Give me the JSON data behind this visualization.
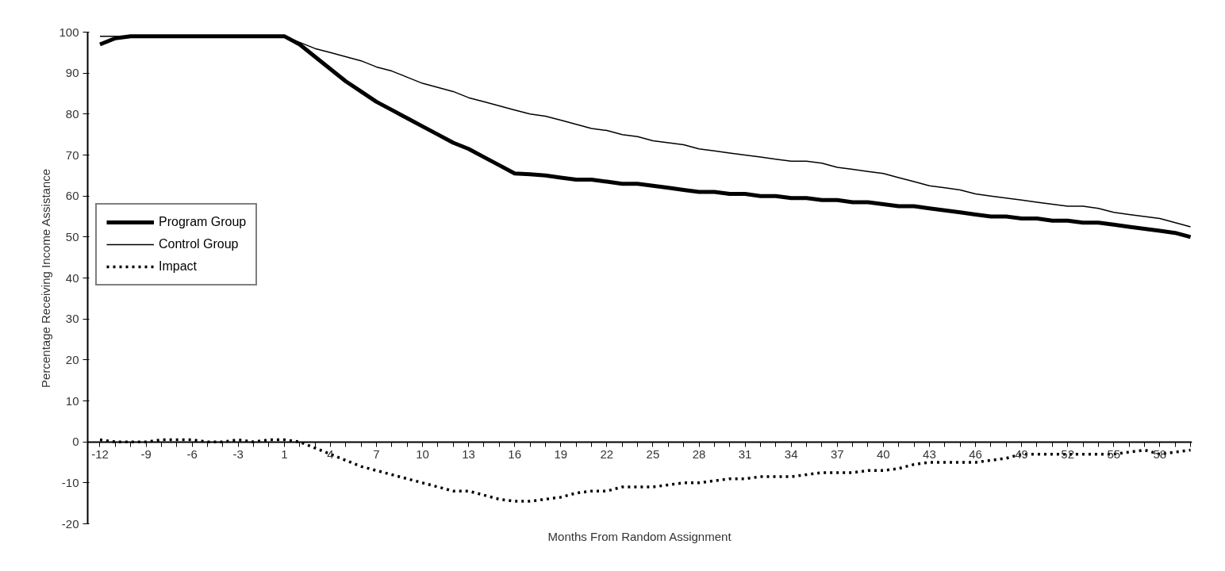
{
  "chart_data": {
    "type": "line",
    "xlabel": "Months From Random Assignment",
    "ylabel": "Percentage Receiving Income Assistance",
    "categories": [
      "-12",
      null,
      null,
      "-9",
      null,
      null,
      "-6",
      null,
      null,
      "-3",
      null,
      null,
      "1",
      null,
      null,
      "4",
      null,
      null,
      "7",
      null,
      null,
      "10",
      null,
      null,
      "13",
      null,
      null,
      "16",
      null,
      null,
      "19",
      null,
      null,
      "22",
      null,
      null,
      "25",
      null,
      null,
      "28",
      null,
      null,
      "31",
      null,
      null,
      "34",
      null,
      null,
      "37",
      null,
      null,
      "40",
      null,
      null,
      "43",
      null,
      null,
      "46",
      null,
      null,
      "49",
      null,
      null,
      "52",
      null,
      null,
      "55",
      null,
      null,
      "58",
      null,
      null
    ],
    "series": [
      {
        "name": "Program Group",
        "color": "#000000",
        "line_style": "solid",
        "values": [
          97,
          98.5,
          99,
          99,
          99,
          99,
          99,
          99,
          99,
          99,
          99,
          99,
          99,
          97,
          94,
          91,
          88,
          85.5,
          83,
          81,
          79,
          77,
          75,
          73,
          71.5,
          69.5,
          67.5,
          65.5,
          65.3,
          65,
          64.5,
          64,
          64,
          63.5,
          63,
          63,
          62.5,
          62,
          61.5,
          61,
          61,
          60.5,
          60.5,
          60,
          60,
          59.5,
          59.5,
          59,
          59,
          58.5,
          58.5,
          58,
          57.5,
          57.5,
          57,
          56.5,
          56,
          55.5,
          55,
          55,
          54.5,
          54.5,
          54,
          54,
          53.5,
          53.5,
          53,
          52.5,
          52,
          51.5,
          51,
          50
        ]
      },
      {
        "name": "Control Group",
        "color": "#000000",
        "line_style": "solid",
        "values": [
          99,
          99,
          99,
          99,
          99,
          99,
          99,
          99,
          99,
          99,
          99,
          99,
          99,
          97.5,
          96,
          95,
          94,
          93,
          91.5,
          90.5,
          89,
          87.5,
          86.5,
          85.5,
          84,
          83,
          82,
          81,
          80,
          79.5,
          78.5,
          77.5,
          76.5,
          76,
          75,
          74.5,
          73.5,
          73,
          72.5,
          71.5,
          71,
          70.5,
          70,
          69.5,
          69,
          68.5,
          68.5,
          68,
          67,
          66.5,
          66,
          65.5,
          64.5,
          63.5,
          62.5,
          62,
          61.5,
          60.5,
          60,
          59.5,
          59,
          58.5,
          58,
          57.5,
          57.5,
          57,
          56,
          55.5,
          55,
          54.5,
          53.5,
          52.5
        ]
      },
      {
        "name": "Impact",
        "color": "#000000",
        "line_style": "dotted",
        "values": [
          0.5,
          0,
          0,
          0,
          0.5,
          0.5,
          0.5,
          0,
          0,
          0.5,
          0,
          0.5,
          0.5,
          0,
          -1.5,
          -3,
          -4.5,
          -6,
          -7,
          -8,
          -9,
          -10,
          -11,
          -12,
          -12,
          -13,
          -14,
          -14.5,
          -14.5,
          -14,
          -13.5,
          -12.5,
          -12,
          -12,
          -11,
          -11,
          -11,
          -10.5,
          -10,
          -10,
          -9.5,
          -9,
          -9,
          -8.5,
          -8.5,
          -8.5,
          -8,
          -7.5,
          -7.5,
          -7.5,
          -7,
          -7,
          -6.5,
          -5.5,
          -5,
          -5,
          -5,
          -5,
          -4.5,
          -4,
          -3,
          -3,
          -3,
          -3,
          -3,
          -3,
          -3,
          -2.5,
          -2,
          -3,
          -2.5,
          -2
        ]
      }
    ],
    "ylim": [
      -20,
      100
    ],
    "yticks": [
      -20,
      -10,
      0,
      10,
      20,
      30,
      40,
      50,
      60,
      70,
      80,
      90,
      100
    ],
    "grid": false,
    "legend": "left"
  }
}
